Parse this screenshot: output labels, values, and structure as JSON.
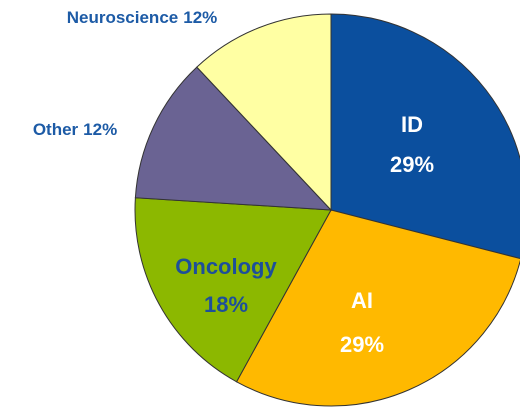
{
  "chart_data": {
    "type": "pie",
    "categories": [
      "ID",
      "AI",
      "Oncology",
      "Other",
      "Neuroscience"
    ],
    "values": [
      29,
      29,
      18,
      12,
      12
    ],
    "value_labels": [
      "29%",
      "29%",
      "18%",
      "12%",
      "12%"
    ],
    "colors": [
      "#0b4f9e",
      "#ffb900",
      "#8cb800",
      "#6a6393",
      "#ffffa3"
    ]
  }
}
